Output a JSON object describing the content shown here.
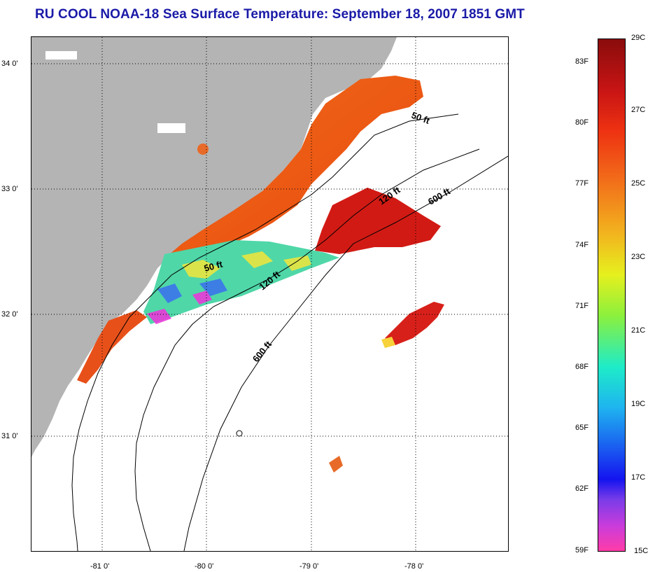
{
  "title": "RU COOL  NOAA-18  Sea Surface Temperature:  September 18, 2007 1851 GMT",
  "map": {
    "lon_labels": [
      "-81 0'",
      "-80 0'",
      "-79 0'",
      "-78 0'"
    ],
    "lat_labels": [
      "34 0'",
      "33 0'",
      "32 0'",
      "31 0'"
    ],
    "contours": [
      {
        "label": "50 ft",
        "id": "north"
      },
      {
        "label": "120 ft",
        "id": "north"
      },
      {
        "label": "600 ft",
        "id": "north"
      },
      {
        "label": "50 ft",
        "id": "south"
      },
      {
        "label": "120 ft",
        "id": "south"
      },
      {
        "label": "600 ft",
        "id": "south"
      }
    ],
    "colors": {
      "land": "#b4b4b4",
      "ocean_nodata": "#ffffff"
    }
  },
  "colorbar": {
    "fahrenheit_labels": [
      "83F",
      "80F",
      "77F",
      "74F",
      "71F",
      "68F",
      "65F",
      "62F",
      "59F"
    ],
    "celsius_labels": [
      "29C",
      "27C",
      "25C",
      "23C",
      "21C",
      "19C",
      "17C",
      "15C"
    ],
    "range_c": [
      15,
      29
    ]
  }
}
